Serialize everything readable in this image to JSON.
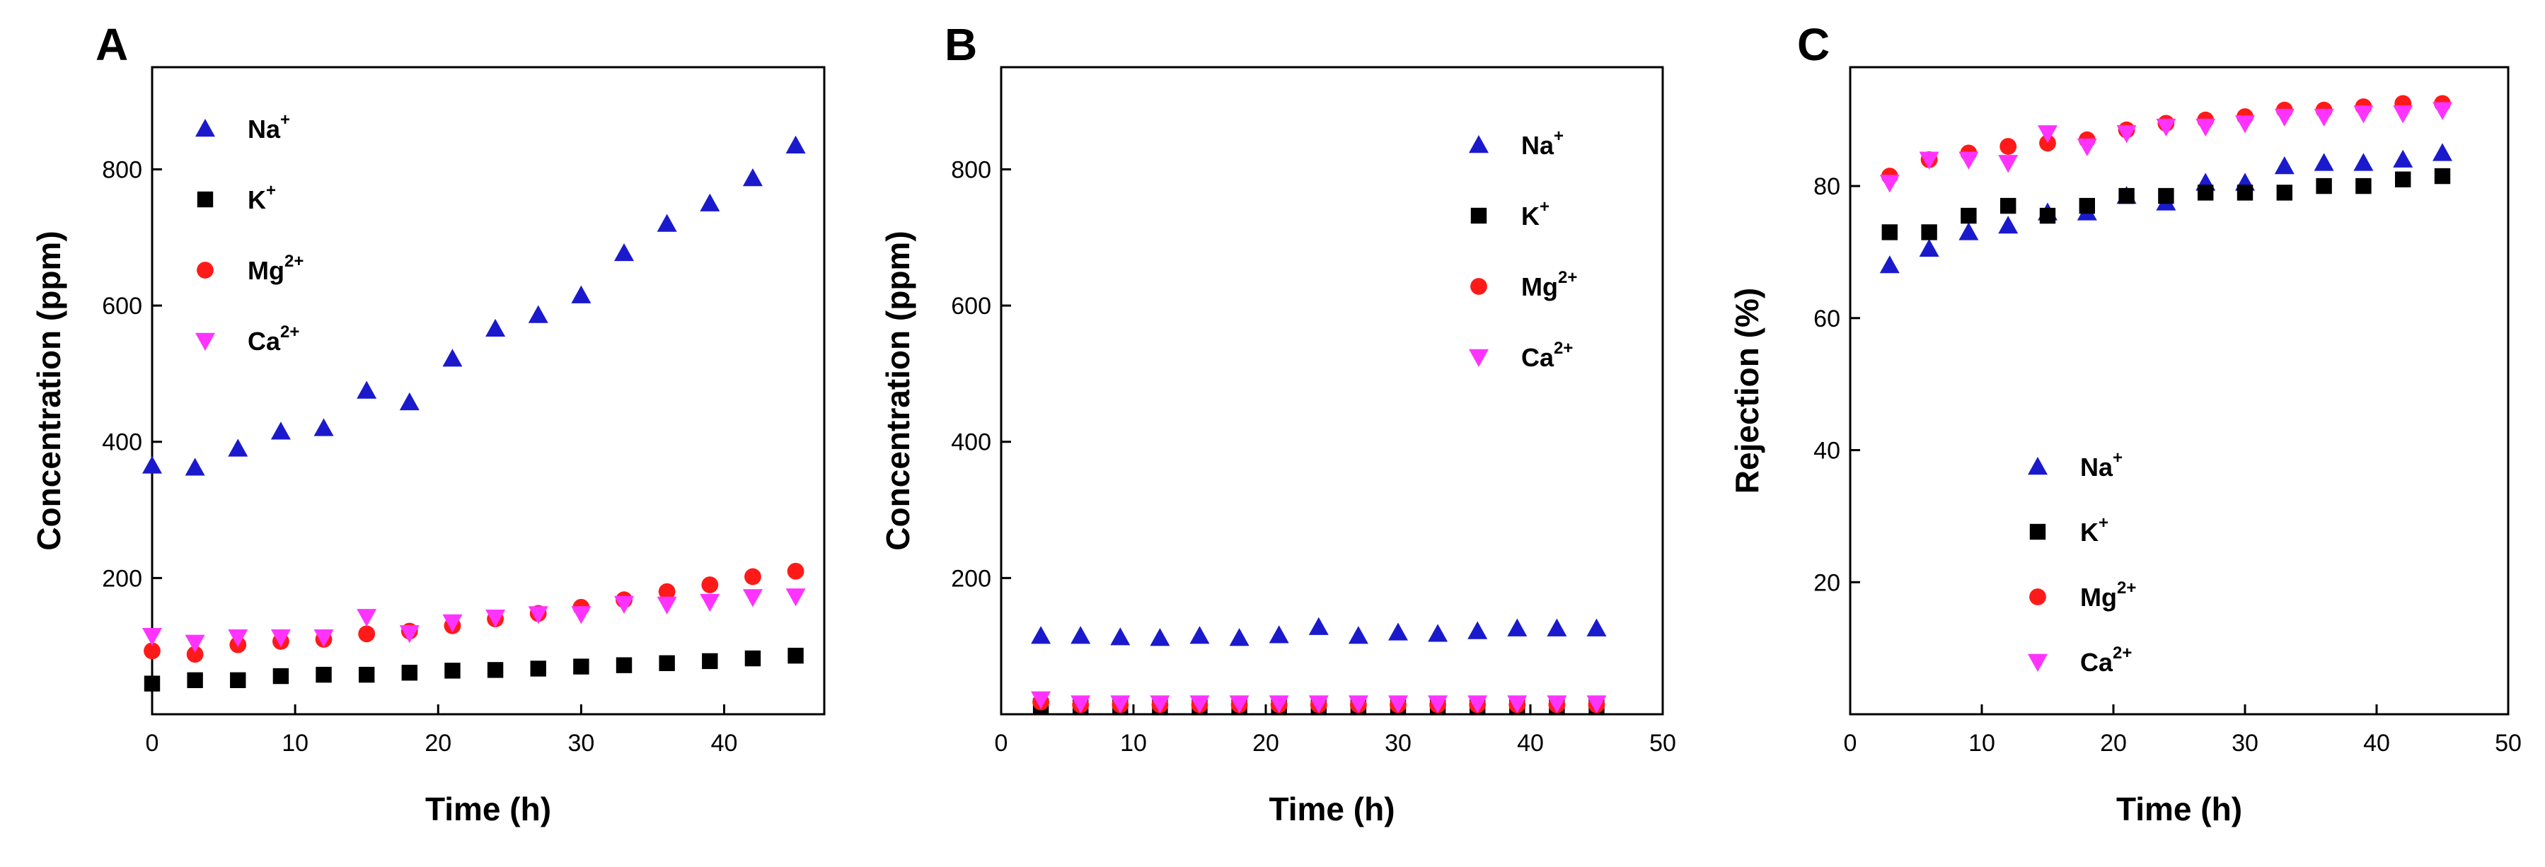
{
  "figure": {
    "panels": [
      {
        "id": "A",
        "label": "A"
      },
      {
        "id": "B",
        "label": "B"
      },
      {
        "id": "C",
        "label": "C"
      }
    ]
  },
  "series_style": [
    {
      "name": "Na+",
      "ion": "Na",
      "charge": "+",
      "marker": "triangle-up",
      "color": "#1a1acc"
    },
    {
      "name": "K+",
      "ion": "K",
      "charge": "+",
      "marker": "square",
      "color": "#000000"
    },
    {
      "name": "Mg2+",
      "ion": "Mg",
      "charge": "2+",
      "marker": "circle",
      "color": "#ff1a1a"
    },
    {
      "name": "Ca2+",
      "ion": "Ca",
      "charge": "2+",
      "marker": "triangle-down",
      "color": "#ff33ff"
    }
  ],
  "chart_data": [
    {
      "panel": "A",
      "type": "scatter",
      "xlabel": "Time (h)",
      "ylabel": "Concentration (ppm)",
      "xlim": [
        0,
        47
      ],
      "ylim": [
        0,
        950
      ],
      "xticks": [
        0,
        10,
        20,
        30,
        40
      ],
      "yticks": [
        200,
        400,
        600,
        800
      ],
      "legend_position": "top-left",
      "series": [
        {
          "name": "Na+",
          "x": [
            0,
            3,
            6,
            9,
            12,
            15,
            18,
            21,
            24,
            27,
            30,
            33,
            36,
            39,
            42,
            45
          ],
          "y": [
            365,
            362,
            390,
            415,
            420,
            475,
            458,
            522,
            566,
            586,
            615,
            677,
            720,
            750,
            787,
            835
          ]
        },
        {
          "name": "K+",
          "x": [
            0,
            3,
            6,
            9,
            12,
            15,
            18,
            21,
            24,
            27,
            30,
            33,
            36,
            39,
            42,
            45
          ],
          "y": [
            45,
            50,
            50,
            56,
            58,
            58,
            61,
            64,
            65,
            67,
            70,
            72,
            75,
            78,
            82,
            86
          ]
        },
        {
          "name": "Mg2+",
          "x": [
            0,
            3,
            6,
            9,
            12,
            15,
            18,
            21,
            24,
            27,
            30,
            33,
            36,
            39,
            42,
            45
          ],
          "y": [
            93,
            88,
            102,
            107,
            110,
            118,
            122,
            130,
            140,
            148,
            157,
            168,
            180,
            190,
            202,
            210
          ]
        },
        {
          "name": "Ca2+",
          "x": [
            0,
            3,
            6,
            9,
            12,
            15,
            18,
            21,
            24,
            27,
            30,
            33,
            36,
            39,
            42,
            45
          ],
          "y": [
            115,
            105,
            113,
            113,
            113,
            143,
            119,
            135,
            142,
            147,
            147,
            162,
            161,
            165,
            172,
            173
          ]
        }
      ]
    },
    {
      "panel": "B",
      "type": "scatter",
      "xlabel": "Time (h)",
      "ylabel": "Concentration (ppm)",
      "xlim": [
        0,
        50
      ],
      "ylim": [
        0,
        950
      ],
      "xticks": [
        0,
        10,
        20,
        30,
        40,
        50
      ],
      "yticks": [
        200,
        400,
        600,
        800
      ],
      "legend_position": "top-right",
      "series": [
        {
          "name": "Na+",
          "x": [
            3,
            6,
            9,
            12,
            15,
            18,
            21,
            24,
            27,
            30,
            33,
            36,
            39,
            42,
            45
          ],
          "y": [
            115,
            115,
            113,
            112,
            115,
            112,
            116,
            128,
            115,
            120,
            118,
            122,
            126,
            126,
            126
          ]
        },
        {
          "name": "K+",
          "x": [
            3,
            6,
            9,
            12,
            15,
            18,
            21,
            24,
            27,
            30,
            33,
            36,
            39,
            42,
            45
          ],
          "y": [
            12,
            10,
            10,
            10,
            10,
            10,
            10,
            10,
            10,
            10,
            10,
            10,
            10,
            10,
            10
          ]
        },
        {
          "name": "Mg2+",
          "x": [
            3,
            6,
            9,
            12,
            15,
            18,
            21,
            24,
            27,
            30,
            33,
            36,
            39,
            42,
            45
          ],
          "y": [
            18,
            14,
            14,
            14,
            14,
            14,
            14,
            14,
            14,
            14,
            14,
            14,
            14,
            14,
            14
          ]
        },
        {
          "name": "Ca2+",
          "x": [
            3,
            6,
            9,
            12,
            15,
            18,
            21,
            24,
            27,
            30,
            33,
            36,
            39,
            42,
            45
          ],
          "y": [
            22,
            16,
            16,
            16,
            16,
            16,
            16,
            16,
            16,
            16,
            16,
            16,
            16,
            16,
            16
          ]
        }
      ]
    },
    {
      "panel": "C",
      "type": "scatter",
      "xlabel": "Time (h)",
      "ylabel": "Rejection (%)",
      "xlim": [
        0,
        50
      ],
      "ylim": [
        0,
        98
      ],
      "xticks": [
        0,
        10,
        20,
        30,
        40,
        50
      ],
      "yticks": [
        20,
        40,
        60,
        80
      ],
      "legend_position": "middle-right",
      "series": [
        {
          "name": "Na+",
          "x": [
            3,
            6,
            9,
            12,
            15,
            18,
            21,
            24,
            27,
            30,
            33,
            36,
            39,
            42,
            45
          ],
          "y": [
            68,
            70.5,
            73,
            74,
            76,
            76,
            78.5,
            77.5,
            80.5,
            80.5,
            83,
            83.5,
            83.5,
            84,
            85
          ]
        },
        {
          "name": "K+",
          "x": [
            3,
            6,
            9,
            12,
            15,
            18,
            21,
            24,
            27,
            30,
            33,
            36,
            39,
            42,
            45
          ],
          "y": [
            73,
            73,
            75.5,
            77,
            75.5,
            77,
            78.5,
            78.5,
            79,
            79,
            79,
            80,
            80,
            81,
            81.5
          ]
        },
        {
          "name": "Mg2+",
          "x": [
            3,
            6,
            9,
            12,
            15,
            18,
            21,
            24,
            27,
            30,
            33,
            36,
            39,
            42,
            45
          ],
          "y": [
            81.5,
            84,
            85,
            86,
            86.5,
            87,
            88.5,
            89.5,
            90,
            90.5,
            91.5,
            91.5,
            92,
            92.5,
            92.5
          ]
        },
        {
          "name": "Ca2+",
          "x": [
            3,
            6,
            9,
            12,
            15,
            18,
            21,
            24,
            27,
            30,
            33,
            36,
            39,
            42,
            45
          ],
          "y": [
            80.5,
            84,
            84,
            83.5,
            88,
            86,
            88,
            89,
            89,
            89.5,
            90.5,
            90.5,
            91,
            91,
            91.5
          ]
        }
      ]
    }
  ]
}
